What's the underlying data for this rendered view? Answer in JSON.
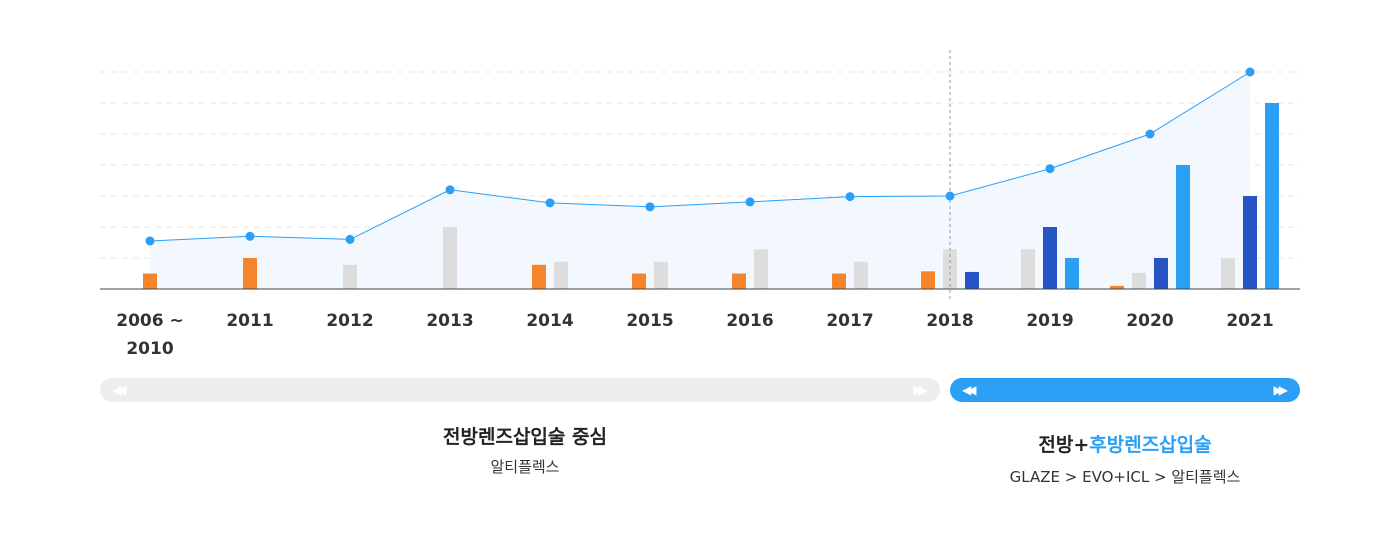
{
  "chart_data": {
    "type": "bar",
    "categories": [
      "2006 ~\n2010",
      "2011",
      "2012",
      "2013",
      "2014",
      "2015",
      "2016",
      "2017",
      "2018",
      "2019",
      "2020",
      "2021"
    ],
    "ylim": [
      0,
      7
    ],
    "grid": true,
    "series": [
      {
        "kind": "bar",
        "color": "#f5842a",
        "values": [
          0.5,
          1.0,
          null,
          null,
          0.78,
          0.5,
          0.5,
          0.5,
          0.57,
          null,
          0.1,
          null
        ]
      },
      {
        "kind": "bar",
        "color": "#dddddd",
        "values": [
          null,
          null,
          0.78,
          2.0,
          0.88,
          0.88,
          1.28,
          0.88,
          1.28,
          1.28,
          0.52,
          1.0
        ]
      },
      {
        "kind": "bar",
        "color": "#2654c4",
        "values": [
          null,
          null,
          null,
          null,
          null,
          null,
          null,
          null,
          0.55,
          2.0,
          1.0,
          3.0
        ]
      },
      {
        "kind": "bar",
        "color": "#2b9ff6",
        "values": [
          null,
          null,
          null,
          null,
          null,
          null,
          null,
          null,
          null,
          1.0,
          4.0,
          6.0
        ]
      },
      {
        "kind": "line",
        "color": "#2b9ff6",
        "values": [
          1.55,
          1.7,
          1.6,
          3.2,
          2.78,
          2.65,
          2.81,
          2.98,
          3.0,
          3.88,
          5.0,
          7.0
        ]
      }
    ],
    "divider_after": "2018"
  },
  "phases": {
    "left": {
      "title": "전방렌즈삽입술 중심",
      "subtitle": "알티플렉스"
    },
    "right": {
      "title_prefix": "전방+",
      "title_highlight": "후방렌즈삽입술",
      "subtitle": "GLAZE > EVO+ICL > 알티플렉스"
    }
  },
  "colors": {
    "accent": "#2b9ff6",
    "orange": "#f5842a",
    "gray": "#dddddd",
    "navy": "#2654c4"
  }
}
